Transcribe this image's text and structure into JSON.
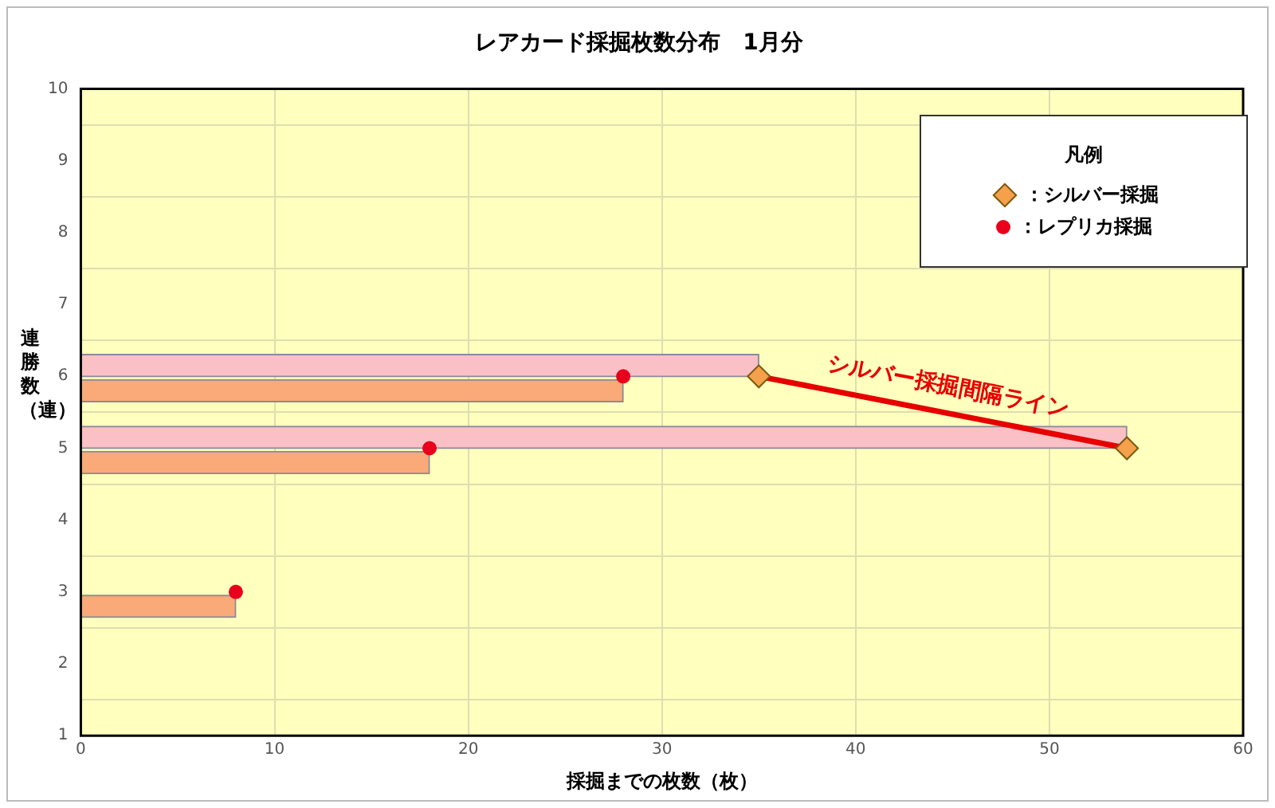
{
  "chart_data": {
    "type": "bar",
    "title": "レアカード採掘枚数分布　1月分",
    "xlabel": "採掘までの枚数（枚）",
    "ylabel": "連勝数（連）",
    "legend_title": "凡例",
    "orientation": "horizontal",
    "xlim": [
      0,
      60
    ],
    "xticks": [
      0,
      10,
      20,
      30,
      40,
      50,
      60
    ],
    "ylim": [
      1,
      10
    ],
    "yticks": [
      1,
      2,
      3,
      4,
      5,
      6,
      7,
      8,
      9,
      10
    ],
    "grid": true,
    "legend": "top right",
    "series": [
      {
        "color": "#fac0c6",
        "x": [
          6.15,
          5.15
        ],
        "values": [
          35,
          54
        ]
      },
      {
        "color": "#f9aa78",
        "x": [
          5.8,
          4.8,
          2.8
        ],
        "values": [
          28,
          18,
          8
        ]
      },
      {
        "type": "line",
        "color": "#e60000",
        "x": [
          6,
          5
        ],
        "values": [
          35,
          54
        ],
        "marker": "none"
      },
      {
        "type": "scatter",
        "name": "：シルバー採掘",
        "color": "#f5a04a",
        "x": [
          6,
          5
        ],
        "values": [
          35,
          54
        ],
        "marker": "diamond"
      },
      {
        "type": "scatter",
        "name": "：レプリカ採掘",
        "color": "#e8001c",
        "x": [
          6,
          5,
          3
        ],
        "values": [
          28,
          18,
          8
        ],
        "marker": "circle"
      }
    ],
    "annotations": [
      {
        "text": "シルバー採掘間隔ライン",
        "x": 44.5,
        "y": 5.5
      }
    ]
  }
}
